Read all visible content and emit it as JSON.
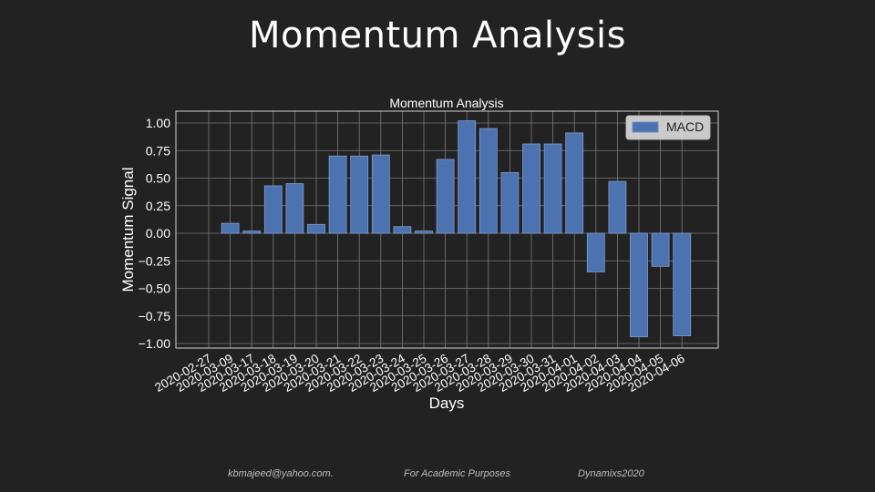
{
  "slide": {
    "title": "Momentum Analysis"
  },
  "footer": {
    "email": "kbmajeed@yahoo.com",
    "email_suffix": ".",
    "purpose": "For Academic Purposes",
    "brand": "Dynamixs2020"
  },
  "colors": {
    "background": "#222222",
    "bar": "#4c72b0",
    "grid": "#7a7a7a",
    "text": "#ffffff"
  },
  "chart_data": {
    "type": "bar",
    "title": "Momentum Analysis",
    "xlabel": "Days",
    "ylabel": "Momentum Signal",
    "ylim": [
      -1.05,
      1.1
    ],
    "yticks": [
      1.0,
      0.75,
      0.5,
      0.25,
      0.0,
      -0.25,
      -0.5,
      -0.75,
      -1.0
    ],
    "ytick_labels": [
      "1.00",
      "0.75",
      "0.50",
      "0.25",
      "0.00",
      "−0.25",
      "−0.50",
      "−0.75",
      "−1.00"
    ],
    "grid": true,
    "legend_position": "top-right",
    "categories": [
      "2020-02-27",
      "2020-03-09",
      "2020-03-17",
      "2020-03-18",
      "2020-03-19",
      "2020-03-20",
      "2020-03-21",
      "2020-03-22",
      "2020-03-23",
      "2020-03-24",
      "2020-03-25",
      "2020-03-26",
      "2020-03-27",
      "2020-03-28",
      "2020-03-29",
      "2020-03-30",
      "2020-03-31",
      "2020-04-01",
      "2020-04-02",
      "2020-04-03",
      "2020-04-04",
      "2020-04-05",
      "2020-04-06"
    ],
    "series": [
      {
        "name": "MACD",
        "values": [
          0.0,
          0.09,
          0.02,
          0.43,
          0.45,
          0.08,
          0.7,
          0.7,
          0.71,
          0.06,
          0.02,
          0.67,
          1.02,
          0.95,
          0.55,
          0.81,
          0.81,
          0.91,
          -0.35,
          0.47,
          -0.94,
          -0.3,
          -0.93
        ]
      }
    ]
  }
}
